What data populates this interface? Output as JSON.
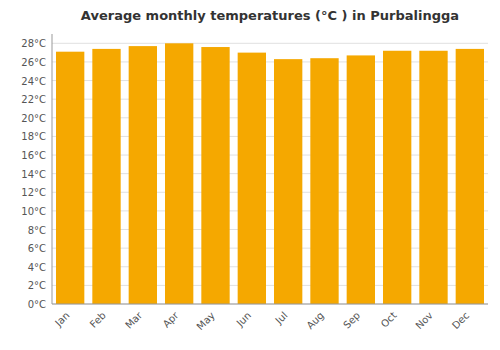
{
  "chart_data": {
    "type": "bar",
    "title": "Average monthly temperatures (°C ) in Purbalingga",
    "categories": [
      "Jan",
      "Feb",
      "Mar",
      "Apr",
      "May",
      "Jun",
      "Jul",
      "Aug",
      "Sep",
      "Oct",
      "Nov",
      "Dec"
    ],
    "values": [
      27.1,
      27.4,
      27.7,
      28.0,
      27.6,
      27.0,
      26.3,
      26.4,
      26.7,
      27.2,
      27.2,
      27.4
    ],
    "color": "#F5A800",
    "ylim": [
      0,
      29
    ],
    "yticks": [
      {
        "value": 0,
        "label": "0°C"
      },
      {
        "value": 2,
        "label": "2°C"
      },
      {
        "value": 4,
        "label": "4°C"
      },
      {
        "value": 6,
        "label": "6°C"
      },
      {
        "value": 8,
        "label": "8°C"
      },
      {
        "value": 10,
        "label": "10°C"
      },
      {
        "value": 12,
        "label": "12°C"
      },
      {
        "value": 14,
        "label": "14°C"
      },
      {
        "value": 16,
        "label": "16°C"
      },
      {
        "value": 18,
        "label": "18°C"
      },
      {
        "value": 20,
        "label": "20°C"
      },
      {
        "value": 22,
        "label": "22°C"
      },
      {
        "value": 24,
        "label": "24°C"
      },
      {
        "value": 26,
        "label": "26°C"
      },
      {
        "value": 28,
        "label": "28°C"
      }
    ],
    "grid": true
  }
}
